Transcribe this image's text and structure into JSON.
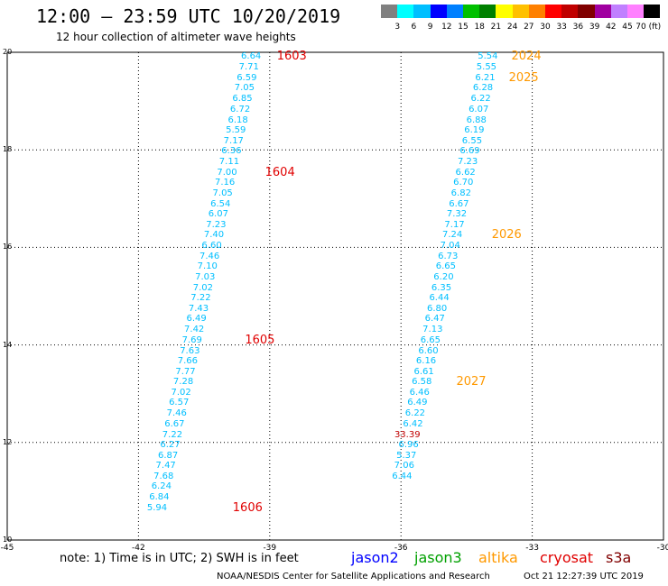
{
  "title": "12:00 – 23:59 UTC 10/20/2019",
  "subtitle": "12 hour collection of altimeter wave heights",
  "scale": {
    "colors": [
      "#808080",
      "#00ffff",
      "#00bfff",
      "#0000ff",
      "#0080ff",
      "#00c000",
      "#008000",
      "#ffff00",
      "#ffc000",
      "#ff8000",
      "#ff0000",
      "#c00000",
      "#800000",
      "#a000a0",
      "#c080ff",
      "#ff80ff",
      "#000000"
    ],
    "labels": [
      "3",
      "6",
      "9",
      "12",
      "15",
      "18",
      "21",
      "24",
      "27",
      "30",
      "33",
      "36",
      "39",
      "42",
      "45",
      "70 (ft)"
    ]
  },
  "map": {
    "lon_range": [
      -45,
      -30
    ],
    "lat_range": [
      10,
      20
    ],
    "xticks": [
      "-45",
      "-42",
      "-39",
      "-36",
      "-33",
      "-30"
    ],
    "yticks": [
      "20",
      "18",
      "16",
      "14",
      "12",
      "10"
    ],
    "grid": "dotted"
  },
  "tracks": [
    {
      "color": "#00bfff",
      "points": [
        {
          "lat": 19.92,
          "lon": -39.16,
          "v": "6.64"
        },
        {
          "lat": 19.7,
          "lon": -39.21,
          "v": "7.71"
        },
        {
          "lat": 19.48,
          "lon": -39.26,
          "v": "6.59"
        },
        {
          "lat": 19.27,
          "lon": -39.31,
          "v": "7.05"
        },
        {
          "lat": 19.05,
          "lon": -39.36,
          "v": "6.85"
        },
        {
          "lat": 18.84,
          "lon": -39.41,
          "v": "6.72"
        },
        {
          "lat": 18.62,
          "lon": -39.46,
          "v": "6.18"
        },
        {
          "lat": 18.41,
          "lon": -39.51,
          "v": "5.59"
        },
        {
          "lat": 18.19,
          "lon": -39.56,
          "v": "7.17"
        },
        {
          "lat": 17.98,
          "lon": -39.61,
          "v": "6.36"
        },
        {
          "lat": 17.76,
          "lon": -39.66,
          "v": "7.11"
        },
        {
          "lat": 17.55,
          "lon": -39.71,
          "v": "7.00"
        },
        {
          "lat": 17.33,
          "lon": -39.76,
          "v": "7.16"
        },
        {
          "lat": 17.12,
          "lon": -39.81,
          "v": "7.05"
        },
        {
          "lat": 16.9,
          "lon": -39.86,
          "v": "6.54"
        },
        {
          "lat": 16.69,
          "lon": -39.91,
          "v": "6.07"
        },
        {
          "lat": 16.47,
          "lon": -39.96,
          "v": "7.23"
        },
        {
          "lat": 16.26,
          "lon": -40.01,
          "v": "7.40"
        },
        {
          "lat": 16.04,
          "lon": -40.06,
          "v": "6.60"
        },
        {
          "lat": 15.83,
          "lon": -40.11,
          "v": "7.46"
        },
        {
          "lat": 15.61,
          "lon": -40.16,
          "v": "7.10"
        },
        {
          "lat": 15.4,
          "lon": -40.21,
          "v": "7.03"
        },
        {
          "lat": 15.18,
          "lon": -40.26,
          "v": "7.02"
        },
        {
          "lat": 14.97,
          "lon": -40.31,
          "v": "7.22"
        },
        {
          "lat": 14.75,
          "lon": -40.36,
          "v": "7.43"
        },
        {
          "lat": 14.54,
          "lon": -40.41,
          "v": "6.49"
        },
        {
          "lat": 14.32,
          "lon": -40.46,
          "v": "7.42"
        },
        {
          "lat": 14.11,
          "lon": -40.51,
          "v": "7.69"
        },
        {
          "lat": 13.89,
          "lon": -40.56,
          "v": "7.63"
        },
        {
          "lat": 13.68,
          "lon": -40.61,
          "v": "7.66"
        },
        {
          "lat": 13.46,
          "lon": -40.66,
          "v": "7.77"
        },
        {
          "lat": 13.25,
          "lon": -40.71,
          "v": "7.28"
        },
        {
          "lat": 13.03,
          "lon": -40.76,
          "v": "7.02"
        },
        {
          "lat": 12.82,
          "lon": -40.81,
          "v": "6.57"
        },
        {
          "lat": 12.6,
          "lon": -40.86,
          "v": "7.46"
        },
        {
          "lat": 12.39,
          "lon": -40.91,
          "v": "6.67"
        },
        {
          "lat": 12.17,
          "lon": -40.96,
          "v": "7.22"
        },
        {
          "lat": 11.96,
          "lon": -41.01,
          "v": "6.27"
        },
        {
          "lat": 11.74,
          "lon": -41.06,
          "v": "6.87"
        },
        {
          "lat": 11.53,
          "lon": -41.11,
          "v": "7.47"
        },
        {
          "lat": 11.31,
          "lon": -41.16,
          "v": "7.68"
        },
        {
          "lat": 11.1,
          "lon": -41.21,
          "v": "6.24"
        },
        {
          "lat": 10.88,
          "lon": -41.26,
          "v": "6.84"
        },
        {
          "lat": 10.67,
          "lon": -41.31,
          "v": "5.94"
        }
      ]
    },
    {
      "color": "#00bfff",
      "points": [
        {
          "lat": 19.92,
          "lon": -33.75,
          "v": "5.54"
        },
        {
          "lat": 19.7,
          "lon": -33.78,
          "v": "5.55"
        },
        {
          "lat": 19.48,
          "lon": -33.81,
          "v": "6.21"
        },
        {
          "lat": 19.27,
          "lon": -33.86,
          "v": "6.28"
        },
        {
          "lat": 19.05,
          "lon": -33.91,
          "v": "6.22"
        },
        {
          "lat": 18.84,
          "lon": -33.96,
          "v": "6.07"
        },
        {
          "lat": 18.62,
          "lon": -34.01,
          "v": "6.88"
        },
        {
          "lat": 18.41,
          "lon": -34.06,
          "v": "6.19"
        },
        {
          "lat": 18.19,
          "lon": -34.11,
          "v": "6.55"
        },
        {
          "lat": 17.98,
          "lon": -34.16,
          "v": "6.69"
        },
        {
          "lat": 17.76,
          "lon": -34.21,
          "v": "7.23"
        },
        {
          "lat": 17.55,
          "lon": -34.26,
          "v": "6.62"
        },
        {
          "lat": 17.33,
          "lon": -34.31,
          "v": "6.70"
        },
        {
          "lat": 17.12,
          "lon": -34.36,
          "v": "6.82"
        },
        {
          "lat": 16.9,
          "lon": -34.41,
          "v": "6.67"
        },
        {
          "lat": 16.69,
          "lon": -34.46,
          "v": "7.32"
        },
        {
          "lat": 16.47,
          "lon": -34.51,
          "v": "7.17"
        },
        {
          "lat": 16.26,
          "lon": -34.56,
          "v": "7.24"
        },
        {
          "lat": 16.04,
          "lon": -34.61,
          "v": "7.04"
        },
        {
          "lat": 15.83,
          "lon": -34.66,
          "v": "6.73"
        },
        {
          "lat": 15.61,
          "lon": -34.71,
          "v": "6.65"
        },
        {
          "lat": 15.4,
          "lon": -34.76,
          "v": "6.20"
        },
        {
          "lat": 15.18,
          "lon": -34.81,
          "v": "6.35"
        },
        {
          "lat": 14.97,
          "lon": -34.86,
          "v": "6.44"
        },
        {
          "lat": 14.75,
          "lon": -34.91,
          "v": "6.80"
        },
        {
          "lat": 14.54,
          "lon": -34.96,
          "v": "6.47"
        },
        {
          "lat": 14.32,
          "lon": -35.01,
          "v": "7.13"
        },
        {
          "lat": 14.11,
          "lon": -35.06,
          "v": "6.65"
        },
        {
          "lat": 13.89,
          "lon": -35.11,
          "v": "6.60"
        },
        {
          "lat": 13.68,
          "lon": -35.16,
          "v": "6.16"
        },
        {
          "lat": 13.46,
          "lon": -35.21,
          "v": "6.61"
        },
        {
          "lat": 13.25,
          "lon": -35.26,
          "v": "6.58"
        },
        {
          "lat": 13.03,
          "lon": -35.31,
          "v": "6.46"
        },
        {
          "lat": 12.82,
          "lon": -35.36,
          "v": "6.49"
        },
        {
          "lat": 12.6,
          "lon": -35.41,
          "v": "6.22"
        },
        {
          "lat": 12.39,
          "lon": -35.46,
          "v": "6.42"
        },
        {
          "lat": 12.17,
          "lon": -35.51,
          "v": "33.39",
          "color": "#c00000"
        },
        {
          "lat": 11.96,
          "lon": -35.56,
          "v": "6.96"
        },
        {
          "lat": 11.74,
          "lon": -35.61,
          "v": "5.37"
        },
        {
          "lat": 11.53,
          "lon": -35.66,
          "v": "7.06"
        },
        {
          "lat": 11.31,
          "lon": -35.71,
          "v": "6.44"
        }
      ]
    }
  ],
  "pass_labels": [
    {
      "text": "1603",
      "lat": 19.92,
      "lon": -38.63,
      "color": "#e00000"
    },
    {
      "text": "1604",
      "lat": 17.55,
      "lon": -38.9,
      "color": "#e00000"
    },
    {
      "text": "1605",
      "lat": 14.11,
      "lon": -39.36,
      "color": "#e00000"
    },
    {
      "text": "1606",
      "lat": 10.67,
      "lon": -39.64,
      "color": "#e00000"
    },
    {
      "text": "2024",
      "lat": 19.92,
      "lon": -33.27,
      "color": "#ff9900"
    },
    {
      "text": "2025",
      "lat": 19.48,
      "lon": -33.33,
      "color": "#ff9900"
    },
    {
      "text": "2026",
      "lat": 16.26,
      "lon": -33.72,
      "color": "#ff9900"
    },
    {
      "text": "2027",
      "lat": 13.25,
      "lon": -34.53,
      "color": "#ff9900"
    }
  ],
  "note": "note: 1) Time is in UTC; 2) SWH is in feet",
  "legend": [
    {
      "label": "jason2",
      "color": "#0000ff"
    },
    {
      "label": "jason3",
      "color": "#00a000"
    },
    {
      "label": "altika",
      "color": "#ff9900"
    },
    {
      "label": "cryosat",
      "color": "#e00000"
    },
    {
      "label": "s3a",
      "color": "#800000"
    }
  ],
  "credit": "NOAA/NESDIS Center for Satellite Applications and Research",
  "timestamp": "Oct 21 12:27:39 UTC 2019"
}
